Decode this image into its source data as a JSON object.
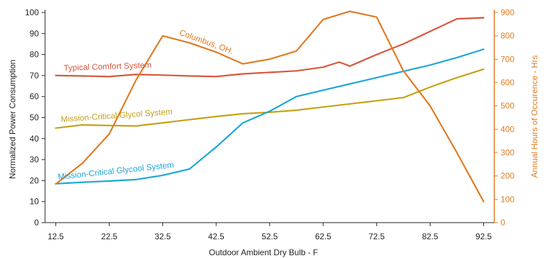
{
  "chart_data": {
    "type": "line",
    "xlabel": "Outdoor Ambient Dry Bulb - F",
    "ylabel_left": "Normalized Power Consumption",
    "ylabel_right": "Annual Hours of Occurence - Hrs",
    "x_ticks": [
      "12.5",
      "22.5",
      "32.5",
      "42.5",
      "52.5",
      "62.5",
      "72.5",
      "82.5",
      "92.5"
    ],
    "xlim": [
      10.5,
      94.5
    ],
    "ylim_left": [
      0,
      100
    ],
    "ylim_right": [
      0,
      900
    ],
    "y_ticks_left": [
      "0",
      "10",
      "20",
      "30",
      "40",
      "50",
      "60",
      "70",
      "80",
      "90",
      "100"
    ],
    "y_ticks_right": [
      "0",
      "100",
      "200",
      "300",
      "400",
      "500",
      "600",
      "700",
      "800",
      "900"
    ],
    "grid": false,
    "series": [
      {
        "name": "Typical Comfort System",
        "axis": "left",
        "color": "#d9553a",
        "x": [
          12.5,
          17.5,
          22.5,
          27.5,
          32.5,
          37.5,
          42.5,
          47.5,
          52.5,
          57.5,
          62.5,
          65.5,
          67.5,
          72.5,
          77.5,
          82.5,
          87.5,
          92.5
        ],
        "y": [
          70,
          69.8,
          69.5,
          70.5,
          70.2,
          69.8,
          69.5,
          70.8,
          71.5,
          72.2,
          74,
          76.4,
          74.5,
          80,
          85,
          91,
          97,
          97.5
        ]
      },
      {
        "name": "Mission-Critical Glycol System",
        "axis": "left",
        "color": "#c4a214",
        "x": [
          12.5,
          17.5,
          22.5,
          27.5,
          32.5,
          37.5,
          42.5,
          47.5,
          52.5,
          57.5,
          62.5,
          67.5,
          72.5,
          77.5,
          82.5,
          87.5,
          92.5
        ],
        "y": [
          45,
          46.5,
          46.2,
          46,
          47.5,
          49,
          50.5,
          51.8,
          52.5,
          53.5,
          55,
          56.5,
          58,
          59.5,
          64.5,
          69,
          73
        ]
      },
      {
        "name": "Mission-Critical Glycool System",
        "axis": "left",
        "color": "#1ba5d8",
        "x": [
          12.5,
          17.5,
          22.5,
          27.5,
          32.5,
          37.5,
          42.5,
          47.5,
          52.5,
          57.5,
          62.5,
          67.5,
          72.5,
          77.5,
          82.5,
          87.5,
          92.5
        ],
        "y": [
          18.5,
          19.2,
          19.8,
          20.5,
          22.5,
          25.5,
          36,
          47.5,
          53,
          60,
          63,
          66,
          69,
          72,
          75,
          78.5,
          82.5
        ]
      },
      {
        "name": "Columbus, OH.",
        "axis": "right",
        "color": "#e07b22",
        "x": [
          12.5,
          17.5,
          22.5,
          27.5,
          32.5,
          37.5,
          42.5,
          47.5,
          52.5,
          57.5,
          62.5,
          67.5,
          72.5,
          77.5,
          82.5,
          87.5,
          92.5
        ],
        "y": [
          165,
          255,
          380,
          610,
          800,
          770,
          730,
          680,
          700,
          735,
          870,
          905,
          880,
          650,
          500,
          300,
          90
        ]
      }
    ],
    "annotations": [
      {
        "text": "Typical Comfort System",
        "color": "#d9553a"
      },
      {
        "text": "Mission-Critical Glycol System",
        "color": "#c4a214"
      },
      {
        "text": "Mission-Critical Glycool System",
        "color": "#1ba5d8"
      },
      {
        "text": "Columbus, OH.",
        "color": "#e07b22"
      }
    ]
  }
}
